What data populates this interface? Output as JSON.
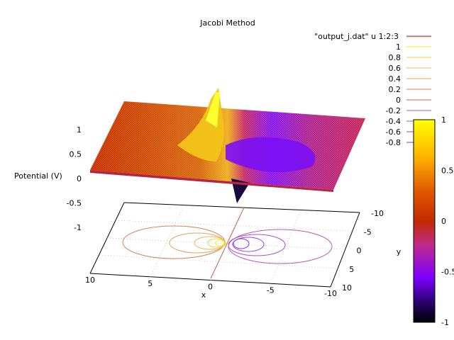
{
  "chart_data": {
    "type": "surface",
    "title": "Jacobi Method",
    "xlabel": "x",
    "ylabel": "y",
    "zlabel": "Potential (V)",
    "xlim": [
      10,
      -10
    ],
    "ylim": [
      -10,
      10
    ],
    "zlim": [
      -1,
      1
    ],
    "x_ticks": [
      "10",
      "5",
      "0",
      "-5",
      "-10"
    ],
    "y_ticks": [
      "-10",
      "-5",
      "0",
      "5",
      "10"
    ],
    "z_ticks": [
      "1",
      "0.5",
      "0",
      "-0.5",
      "-1"
    ],
    "legend": {
      "position": "top-right",
      "series_label": "\"output_j.dat\" u 1:2:3",
      "contour_levels": [
        "1",
        "0.8",
        "0.6",
        "0.4",
        "0.2",
        "0",
        "-0.2",
        "-0.4",
        "-0.6",
        "-0.8"
      ],
      "contour_colors": [
        "#f2f21a",
        "#f0d23c",
        "#eab85a",
        "#e4a35f",
        "#d7805a",
        "#c8654e",
        "#c256b3",
        "#b04bd2",
        "#9a40e0",
        "#8233ee"
      ]
    },
    "colorbar": {
      "ticks": [
        "1",
        "0.5",
        "0",
        "-0.5",
        "-1"
      ],
      "palette": [
        "#ffff00",
        "#ff8c00",
        "#c82800",
        "#b01e78",
        "#7a00ff",
        "#000000"
      ]
    },
    "peaks": [
      {
        "x": 1,
        "y": 0,
        "z": 1
      },
      {
        "x": -1,
        "y": 0,
        "z": -1
      }
    ]
  }
}
